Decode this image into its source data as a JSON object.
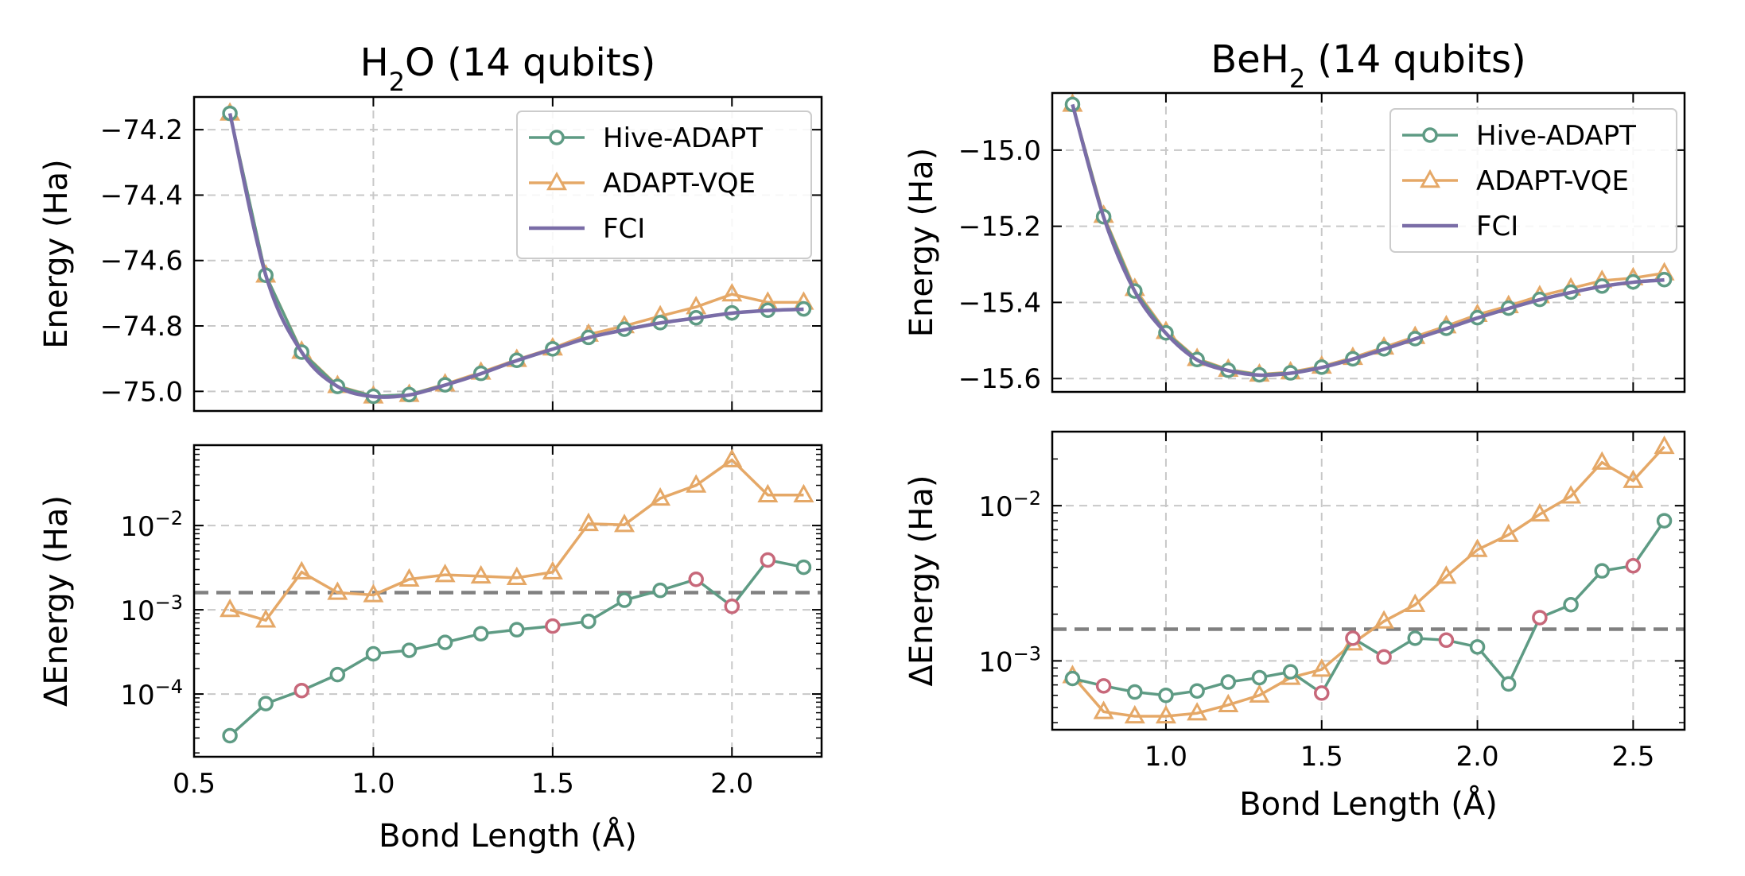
{
  "chart_data": [
    {
      "type": "line",
      "title": "H2O (14 qubits)",
      "title_main": "H",
      "title_sub": "2",
      "title_rest": "O (14 qubits)",
      "xlabel": "Bond Length (Å)",
      "xlim": [
        0.5,
        2.25
      ],
      "xticks": [
        0.5,
        1.0,
        1.5,
        2.0
      ],
      "xtick_labels": [
        "0.5",
        "1.0",
        "1.5",
        "2.0"
      ],
      "top": {
        "ylabel": "Energy (Ha)",
        "ylim": [
          -75.06,
          -74.1
        ],
        "yticks": [
          -75.0,
          -74.8,
          -74.6,
          -74.4,
          -74.2
        ],
        "ytick_labels": [
          "−75.0",
          "−74.8",
          "−74.6",
          "−74.4",
          "−74.2"
        ],
        "x": [
          0.6,
          0.7,
          0.8,
          0.9,
          1.0,
          1.1,
          1.2,
          1.3,
          1.4,
          1.5,
          1.6,
          1.7,
          1.8,
          1.9,
          2.0,
          2.1,
          2.2
        ],
        "series": [
          {
            "name": "Hive-ADAPT",
            "values": [
              -74.15,
              -74.645,
              -74.88,
              -74.985,
              -75.015,
              -75.01,
              -74.98,
              -74.945,
              -74.905,
              -74.87,
              -74.835,
              -74.81,
              -74.79,
              -74.775,
              -74.76,
              -74.752,
              -74.748
            ]
          },
          {
            "name": "ADAPT-VQE",
            "values": [
              -74.15,
              -74.645,
              -74.878,
              -74.983,
              -75.015,
              -75.01,
              -74.978,
              -74.942,
              -74.903,
              -74.868,
              -74.826,
              -74.8,
              -74.77,
              -74.742,
              -74.703,
              -74.728,
              -74.728
            ]
          },
          {
            "name": "FCI",
            "values": [
              -74.15,
              -74.645,
              -74.88,
              -74.985,
              -75.016,
              -75.011,
              -74.981,
              -74.946,
              -74.906,
              -74.871,
              -74.836,
              -74.812,
              -74.791,
              -74.776,
              -74.761,
              -74.753,
              -74.749
            ]
          }
        ]
      },
      "bottom": {
        "ylabel": "ΔEnergy (Ha)",
        "yscale": "log",
        "ylim": [
          1.8e-05,
          0.09
        ],
        "yticks": [
          0.0001,
          0.001,
          0.01
        ],
        "ytick_base": [
          "10",
          "10",
          "10"
        ],
        "ytick_exp": [
          "−4",
          "−3",
          "−2"
        ],
        "threshold": 0.0016,
        "x": [
          0.6,
          0.7,
          0.8,
          0.9,
          1.0,
          1.1,
          1.2,
          1.3,
          1.4,
          1.5,
          1.6,
          1.7,
          1.8,
          1.9,
          2.0,
          2.1,
          2.2
        ],
        "series": [
          {
            "name": "Hive-ADAPT",
            "values": [
              3.2e-05,
              7.7e-05,
              0.00011,
              0.00017,
              0.0003,
              0.00033,
              0.00041,
              0.00052,
              0.00058,
              0.00064,
              0.00073,
              0.0013,
              0.0017,
              0.0023,
              0.0011,
              0.0039,
              0.0032
            ],
            "highlight": [
              false,
              false,
              true,
              false,
              false,
              false,
              false,
              false,
              false,
              true,
              false,
              false,
              false,
              true,
              true,
              true,
              false
            ]
          },
          {
            "name": "ADAPT-VQE",
            "values": [
              0.001,
              0.00075,
              0.0028,
              0.0016,
              0.0015,
              0.0023,
              0.0026,
              0.0025,
              0.0024,
              0.0028,
              0.0105,
              0.0102,
              0.021,
              0.03,
              0.06,
              0.023,
              0.023
            ]
          }
        ]
      }
    },
    {
      "type": "line",
      "title": "BeH2 (14 qubits)",
      "title_main": "BeH",
      "title_sub": "2",
      "title_rest": " (14 qubits)",
      "xlabel": "Bond Length (Å)",
      "xlim": [
        0.635,
        2.665
      ],
      "xticks": [
        1.0,
        1.5,
        2.0,
        2.5
      ],
      "xtick_labels": [
        "1.0",
        "1.5",
        "2.0",
        "2.5"
      ],
      "top": {
        "ylabel": "Energy (Ha)",
        "ylim": [
          -15.635,
          -14.85
        ],
        "yticks": [
          -15.6,
          -15.4,
          -15.2,
          -15.0
        ],
        "ytick_labels": [
          "−15.6",
          "−15.4",
          "−15.2",
          "−15.0"
        ],
        "x": [
          0.7,
          0.8,
          0.9,
          1.0,
          1.1,
          1.2,
          1.3,
          1.4,
          1.5,
          1.6,
          1.7,
          1.8,
          1.9,
          2.0,
          2.1,
          2.2,
          2.3,
          2.4,
          2.5,
          2.6
        ],
        "series": [
          {
            "name": "Hive-ADAPT",
            "values": [
              -14.88,
              -15.175,
              -15.37,
              -15.48,
              -15.55,
              -15.578,
              -15.59,
              -15.585,
              -15.57,
              -15.548,
              -15.522,
              -15.495,
              -15.468,
              -15.44,
              -15.415,
              -15.392,
              -15.373,
              -15.357,
              -15.346,
              -15.34
            ]
          },
          {
            "name": "ADAPT-VQE",
            "values": [
              -14.88,
              -15.172,
              -15.364,
              -15.477,
              -15.548,
              -15.576,
              -15.589,
              -15.583,
              -15.568,
              -15.545,
              -15.518,
              -15.49,
              -15.462,
              -15.432,
              -15.409,
              -15.383,
              -15.363,
              -15.343,
              -15.336,
              -15.323
            ]
          },
          {
            "name": "FCI",
            "values": [
              -14.88,
              -15.176,
              -15.371,
              -15.481,
              -15.551,
              -15.579,
              -15.591,
              -15.586,
              -15.571,
              -15.549,
              -15.523,
              -15.496,
              -15.469,
              -15.441,
              -15.416,
              -15.393,
              -15.374,
              -15.358,
              -15.347,
              -15.341
            ]
          }
        ]
      },
      "bottom": {
        "ylabel": "ΔEnergy (Ha)",
        "yscale": "log",
        "ylim": [
          0.00036,
          0.03
        ],
        "yticks": [
          0.001,
          0.01
        ],
        "ytick_base": [
          "10",
          "10"
        ],
        "ytick_exp": [
          "−3",
          "−2"
        ],
        "threshold": 0.0016,
        "x": [
          0.7,
          0.8,
          0.9,
          1.0,
          1.1,
          1.2,
          1.3,
          1.4,
          1.5,
          1.6,
          1.7,
          1.8,
          1.9,
          2.0,
          2.1,
          2.2,
          2.3,
          2.4,
          2.5,
          2.6
        ],
        "series": [
          {
            "name": "Hive-ADAPT",
            "values": [
              0.00077,
              0.00069,
              0.00063,
              0.0006,
              0.00064,
              0.00073,
              0.00078,
              0.00085,
              0.00062,
              0.0014,
              0.00106,
              0.0014,
              0.00136,
              0.00123,
              0.00071,
              0.0019,
              0.0023,
              0.0038,
              0.0041,
              0.008
            ],
            "highlight": [
              false,
              true,
              false,
              false,
              false,
              false,
              false,
              false,
              true,
              true,
              true,
              false,
              true,
              false,
              false,
              true,
              false,
              false,
              true,
              false
            ]
          },
          {
            "name": "ADAPT-VQE",
            "values": [
              0.0008,
              0.00047,
              0.00044,
              0.00044,
              0.00046,
              0.00052,
              0.0006,
              0.00078,
              0.00088,
              0.0013,
              0.0018,
              0.0023,
              0.0035,
              0.0052,
              0.0065,
              0.0088,
              0.0115,
              0.019,
              0.0145,
              0.024
            ]
          }
        ]
      }
    }
  ],
  "legend": {
    "items": [
      {
        "label": "Hive-ADAPT",
        "marker": "circle"
      },
      {
        "label": "ADAPT-VQE",
        "marker": "triangle"
      },
      {
        "label": "FCI",
        "marker": "none"
      }
    ],
    "placement": "upper right"
  },
  "colors": {
    "hive": "#5e9b84",
    "adapt": "#e5a867",
    "fci": "#7a6da7",
    "highlight": "#c7687a",
    "threshold": "#808080",
    "grid": "#c8c8c8"
  }
}
